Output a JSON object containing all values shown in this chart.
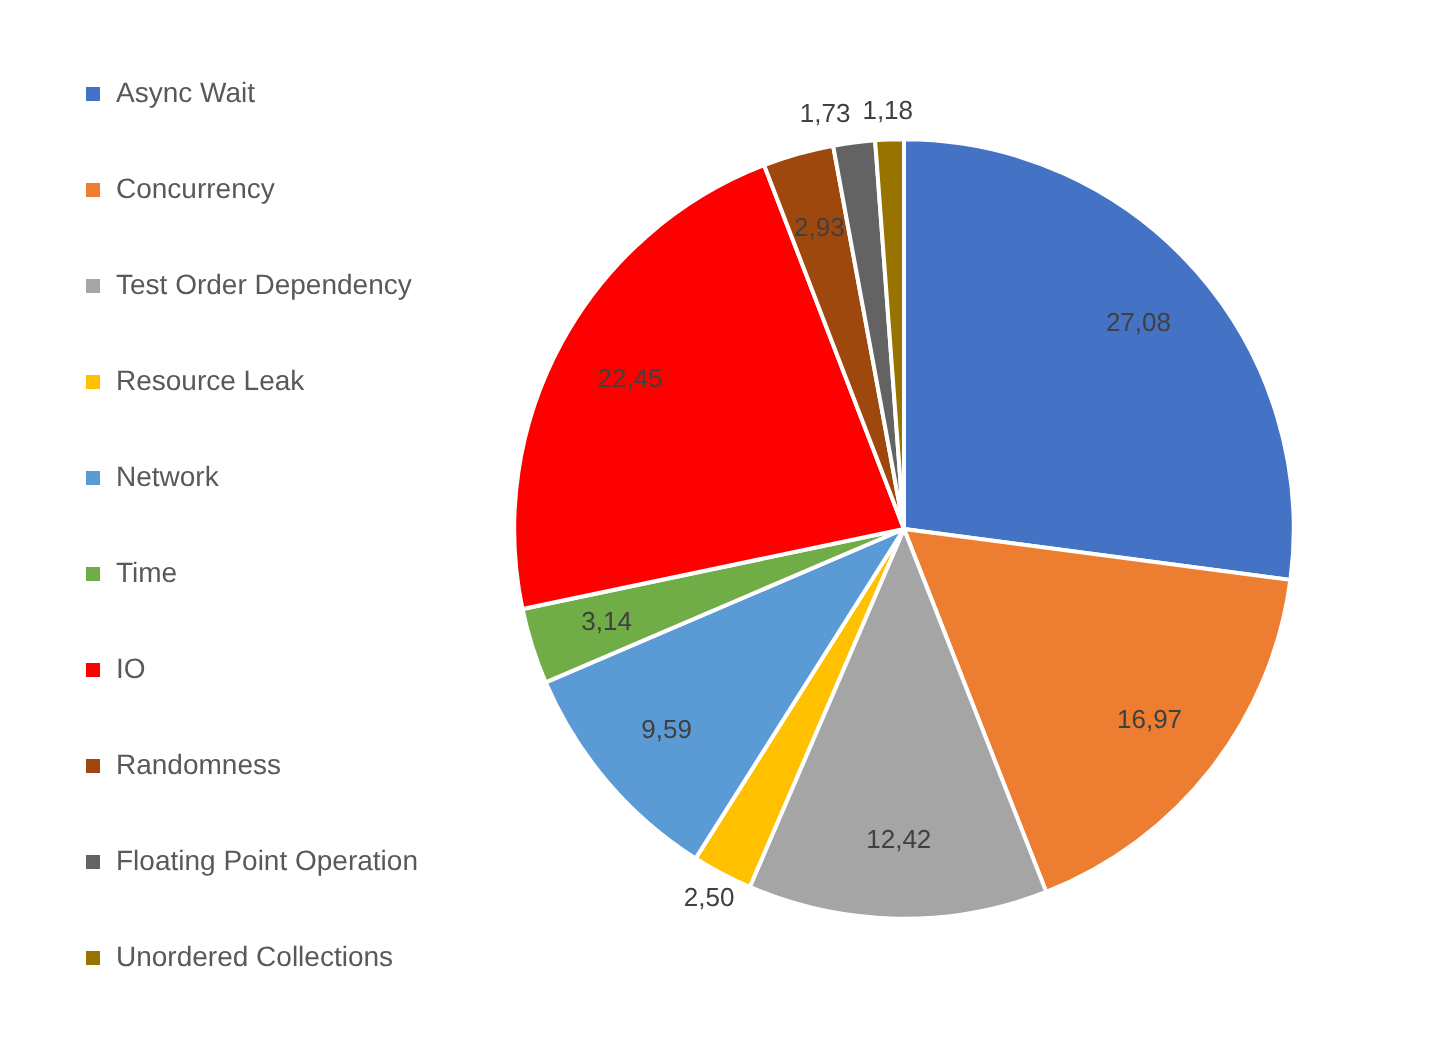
{
  "chart_data": {
    "type": "pie",
    "categories": [
      "Async Wait",
      "Concurrency",
      "Test Order Dependency",
      "Resource Leak",
      "Network",
      "Time",
      "IO",
      "Randomness",
      "Floating Point Operation",
      "Unordered Collections"
    ],
    "values": [
      27.08,
      16.97,
      12.42,
      2.5,
      9.59,
      3.14,
      22.45,
      2.93,
      1.73,
      1.18
    ],
    "value_labels": [
      "27,08",
      "16,97",
      "12,42",
      "2,50",
      "9,59",
      "3,14",
      "22,45",
      "2,93",
      "1,73",
      "1,18"
    ],
    "colors": [
      "#4472c4",
      "#ed7d31",
      "#a5a5a5",
      "#ffc000",
      "#5b9bd5",
      "#70ad47",
      "#ff0000",
      "#9e480e",
      "#636363",
      "#997300"
    ],
    "legend": "left"
  }
}
